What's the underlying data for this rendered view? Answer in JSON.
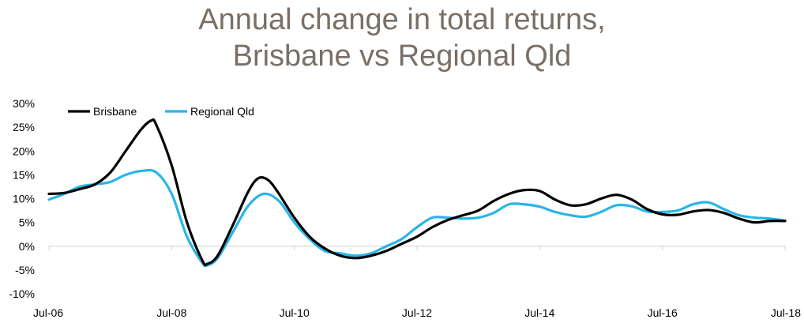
{
  "chart_data": {
    "type": "line",
    "title": "Annual change in total returns,",
    "subtitle": "Brisbane vs Regional Qld",
    "xlabel": "",
    "ylabel": "",
    "x_ticks": [
      "Jul-06",
      "Jul-08",
      "Jul-10",
      "Jul-12",
      "Jul-14",
      "Jul-16",
      "Jul-18"
    ],
    "y_ticks": [
      "30%",
      "25%",
      "20%",
      "15%",
      "10%",
      "5%",
      "0%",
      "-5%",
      "-10%"
    ],
    "ylim": [
      -10,
      30
    ],
    "xlim": [
      "2006-07",
      "2018-07"
    ],
    "grid": false,
    "legend_position": "top-left",
    "series": [
      {
        "name": "Brisbane",
        "color": "#000000",
        "points": [
          [
            "2006-07",
            11.0
          ],
          [
            "2006-10",
            11.2
          ],
          [
            "2007-01",
            12.0
          ],
          [
            "2007-04",
            13.0
          ],
          [
            "2007-07",
            15.5
          ],
          [
            "2007-10",
            20.0
          ],
          [
            "2008-01",
            24.5
          ],
          [
            "2008-03",
            26.4
          ],
          [
            "2008-04",
            25.5
          ],
          [
            "2008-07",
            17.0
          ],
          [
            "2008-10",
            5.0
          ],
          [
            "2009-01",
            -3.0
          ],
          [
            "2009-02",
            -3.7
          ],
          [
            "2009-04",
            -2.0
          ],
          [
            "2009-07",
            4.5
          ],
          [
            "2009-10",
            11.5
          ],
          [
            "2009-12",
            14.3
          ],
          [
            "2010-02",
            13.8
          ],
          [
            "2010-04",
            11.0
          ],
          [
            "2010-07",
            6.0
          ],
          [
            "2010-10",
            2.0
          ],
          [
            "2011-01",
            -0.5
          ],
          [
            "2011-04",
            -2.0
          ],
          [
            "2011-07",
            -2.5
          ],
          [
            "2011-10",
            -2.0
          ],
          [
            "2012-01",
            -1.0
          ],
          [
            "2012-04",
            0.5
          ],
          [
            "2012-07",
            2.0
          ],
          [
            "2012-10",
            4.0
          ],
          [
            "2013-01",
            5.5
          ],
          [
            "2013-04",
            6.5
          ],
          [
            "2013-07",
            7.5
          ],
          [
            "2013-10",
            9.5
          ],
          [
            "2014-01",
            11.0
          ],
          [
            "2014-04",
            11.8
          ],
          [
            "2014-07",
            11.6
          ],
          [
            "2014-10",
            9.8
          ],
          [
            "2015-01",
            8.6
          ],
          [
            "2015-04",
            8.8
          ],
          [
            "2015-07",
            10.0
          ],
          [
            "2015-10",
            10.8
          ],
          [
            "2016-01",
            9.8
          ],
          [
            "2016-04",
            7.8
          ],
          [
            "2016-07",
            6.7
          ],
          [
            "2016-10",
            6.6
          ],
          [
            "2017-01",
            7.3
          ],
          [
            "2017-04",
            7.6
          ],
          [
            "2017-07",
            7.0
          ],
          [
            "2017-10",
            5.8
          ],
          [
            "2018-01",
            5.0
          ],
          [
            "2018-04",
            5.3
          ],
          [
            "2018-07",
            5.3
          ]
        ]
      },
      {
        "name": "Regional Qld",
        "color": "#29b5e8",
        "points": [
          [
            "2006-07",
            9.8
          ],
          [
            "2006-10",
            11.0
          ],
          [
            "2007-01",
            12.5
          ],
          [
            "2007-04",
            13.0
          ],
          [
            "2007-07",
            13.5
          ],
          [
            "2007-10",
            15.0
          ],
          [
            "2008-01",
            15.8
          ],
          [
            "2008-04",
            15.5
          ],
          [
            "2008-07",
            11.0
          ],
          [
            "2008-10",
            2.0
          ],
          [
            "2009-01",
            -3.5
          ],
          [
            "2009-02",
            -4.0
          ],
          [
            "2009-04",
            -2.5
          ],
          [
            "2009-07",
            3.0
          ],
          [
            "2009-10",
            8.5
          ],
          [
            "2010-01",
            11.0
          ],
          [
            "2010-04",
            9.5
          ],
          [
            "2010-07",
            5.0
          ],
          [
            "2010-10",
            1.5
          ],
          [
            "2011-01",
            -1.0
          ],
          [
            "2011-04",
            -1.5
          ],
          [
            "2011-07",
            -2.0
          ],
          [
            "2011-10",
            -1.5
          ],
          [
            "2012-01",
            0.0
          ],
          [
            "2012-04",
            1.5
          ],
          [
            "2012-07",
            4.0
          ],
          [
            "2012-10",
            6.0
          ],
          [
            "2013-01",
            6.0
          ],
          [
            "2013-04",
            5.8
          ],
          [
            "2013-07",
            6.0
          ],
          [
            "2013-10",
            7.0
          ],
          [
            "2014-01",
            8.8
          ],
          [
            "2014-04",
            8.8
          ],
          [
            "2014-07",
            8.3
          ],
          [
            "2014-10",
            7.2
          ],
          [
            "2015-01",
            6.5
          ],
          [
            "2015-04",
            6.2
          ],
          [
            "2015-07",
            7.2
          ],
          [
            "2015-10",
            8.6
          ],
          [
            "2016-01",
            8.4
          ],
          [
            "2016-04",
            7.3
          ],
          [
            "2016-07",
            7.2
          ],
          [
            "2016-10",
            7.5
          ],
          [
            "2017-01",
            8.8
          ],
          [
            "2017-04",
            9.2
          ],
          [
            "2017-07",
            7.8
          ],
          [
            "2017-10",
            6.5
          ],
          [
            "2018-01",
            6.0
          ],
          [
            "2018-04",
            5.8
          ],
          [
            "2018-07",
            5.4
          ]
        ]
      }
    ]
  }
}
